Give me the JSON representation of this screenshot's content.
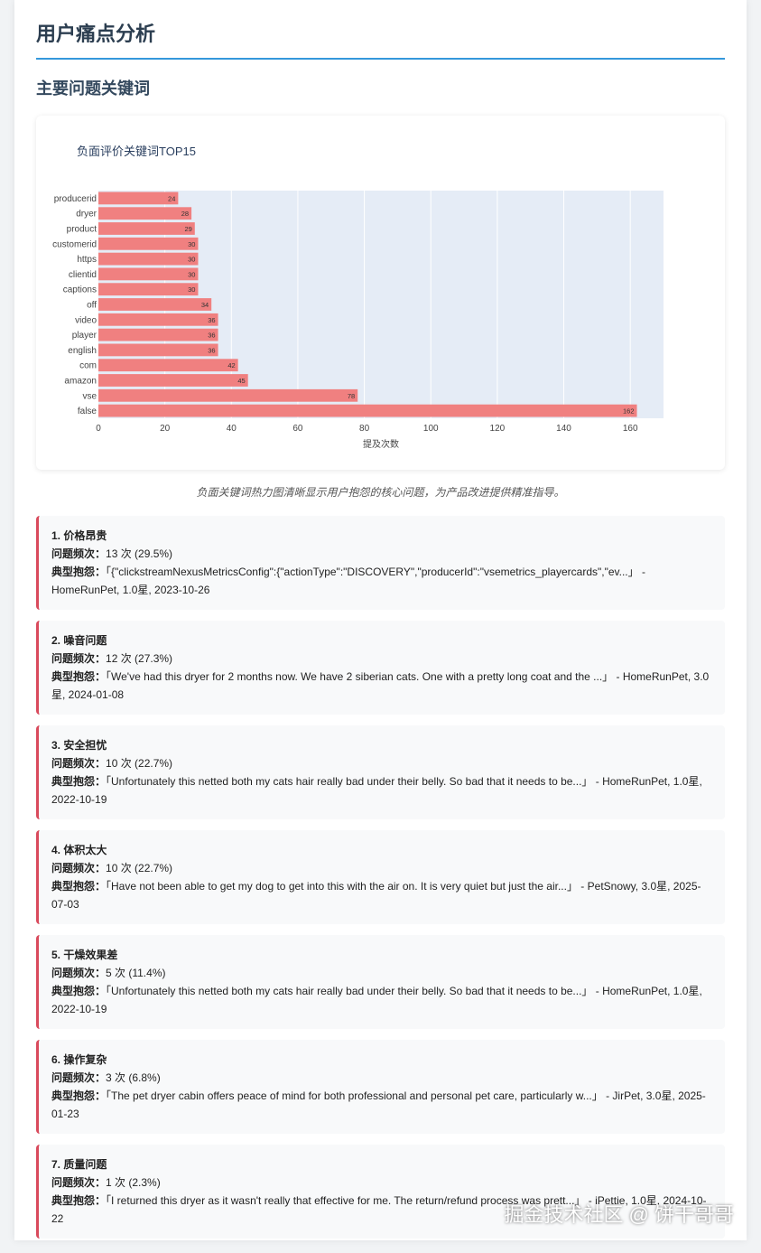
{
  "title": "用户痛点分析",
  "section": "主要问题关键词",
  "chart_data": {
    "type": "bar",
    "orientation": "horizontal",
    "title": "负面评价关键词TOP15",
    "xlabel": "提及次数",
    "ylabel": "",
    "xlim": [
      0,
      170
    ],
    "xticks": [
      0,
      20,
      40,
      60,
      80,
      100,
      120,
      140,
      160
    ],
    "categories": [
      "producerid",
      "dryer",
      "product",
      "customerid",
      "https",
      "clientid",
      "captions",
      "off",
      "video",
      "player",
      "english",
      "com",
      "amazon",
      "vse",
      "false"
    ],
    "values": [
      24,
      28,
      29,
      30,
      30,
      30,
      30,
      34,
      36,
      36,
      36,
      42,
      45,
      78,
      162
    ],
    "bar_color": "#f08080",
    "plot_bg": "#e5ecf6",
    "grid": true
  },
  "caption": "负面关键词热力图清晰显示用户抱怨的核心问题，为产品改进提供精准指导。",
  "freq_label": "问题频次：",
  "quote_label": "典型抱怨：",
  "issues": [
    {
      "title": "1. 价格昂贵",
      "freq": "13 次 (29.5%)",
      "quote": "「{\"clickstreamNexusMetricsConfig\":{\"actionType\":\"DISCOVERY\",\"producerId\":\"vsemetrics_playercards\",\"ev...」 - HomeRunPet, 1.0星, 2023-10-26"
    },
    {
      "title": "2. 噪音问题",
      "freq": "12 次 (27.3%)",
      "quote": "「We've had this dryer for 2 months now. We have 2 siberian cats. One with a pretty long coat and the ...」 - HomeRunPet, 3.0星, 2024-01-08"
    },
    {
      "title": "3. 安全担忧",
      "freq": "10 次 (22.7%)",
      "quote": "「Unfortunately this netted both my cats hair really bad under their belly. So bad that it needs to be...」 - HomeRunPet, 1.0星, 2022-10-19"
    },
    {
      "title": "4. 体积太大",
      "freq": "10 次 (22.7%)",
      "quote": "「Have not been able to get my dog to get into this with the air on. It is very quiet but just the air...」 - PetSnowy, 3.0星, 2025-07-03"
    },
    {
      "title": "5. 干燥效果差",
      "freq": "5 次 (11.4%)",
      "quote": "「Unfortunately this netted both my cats hair really bad under their belly. So bad that it needs to be...」 - HomeRunPet, 1.0星, 2022-10-19"
    },
    {
      "title": "6. 操作复杂",
      "freq": "3 次 (6.8%)",
      "quote": "「The pet dryer cabin offers peace of mind for both professional and personal pet care, particularly w...」 - JirPet, 3.0星, 2025-01-23"
    },
    {
      "title": "7. 质量问题",
      "freq": "1 次 (2.3%)",
      "quote": "「I returned this dryer as it wasn't really that effective for me. The return/refund process was prett...」 - iPettie, 1.0星, 2024-10-22"
    }
  ],
  "watermark": "掘金技术社区 @ 饼干哥哥"
}
